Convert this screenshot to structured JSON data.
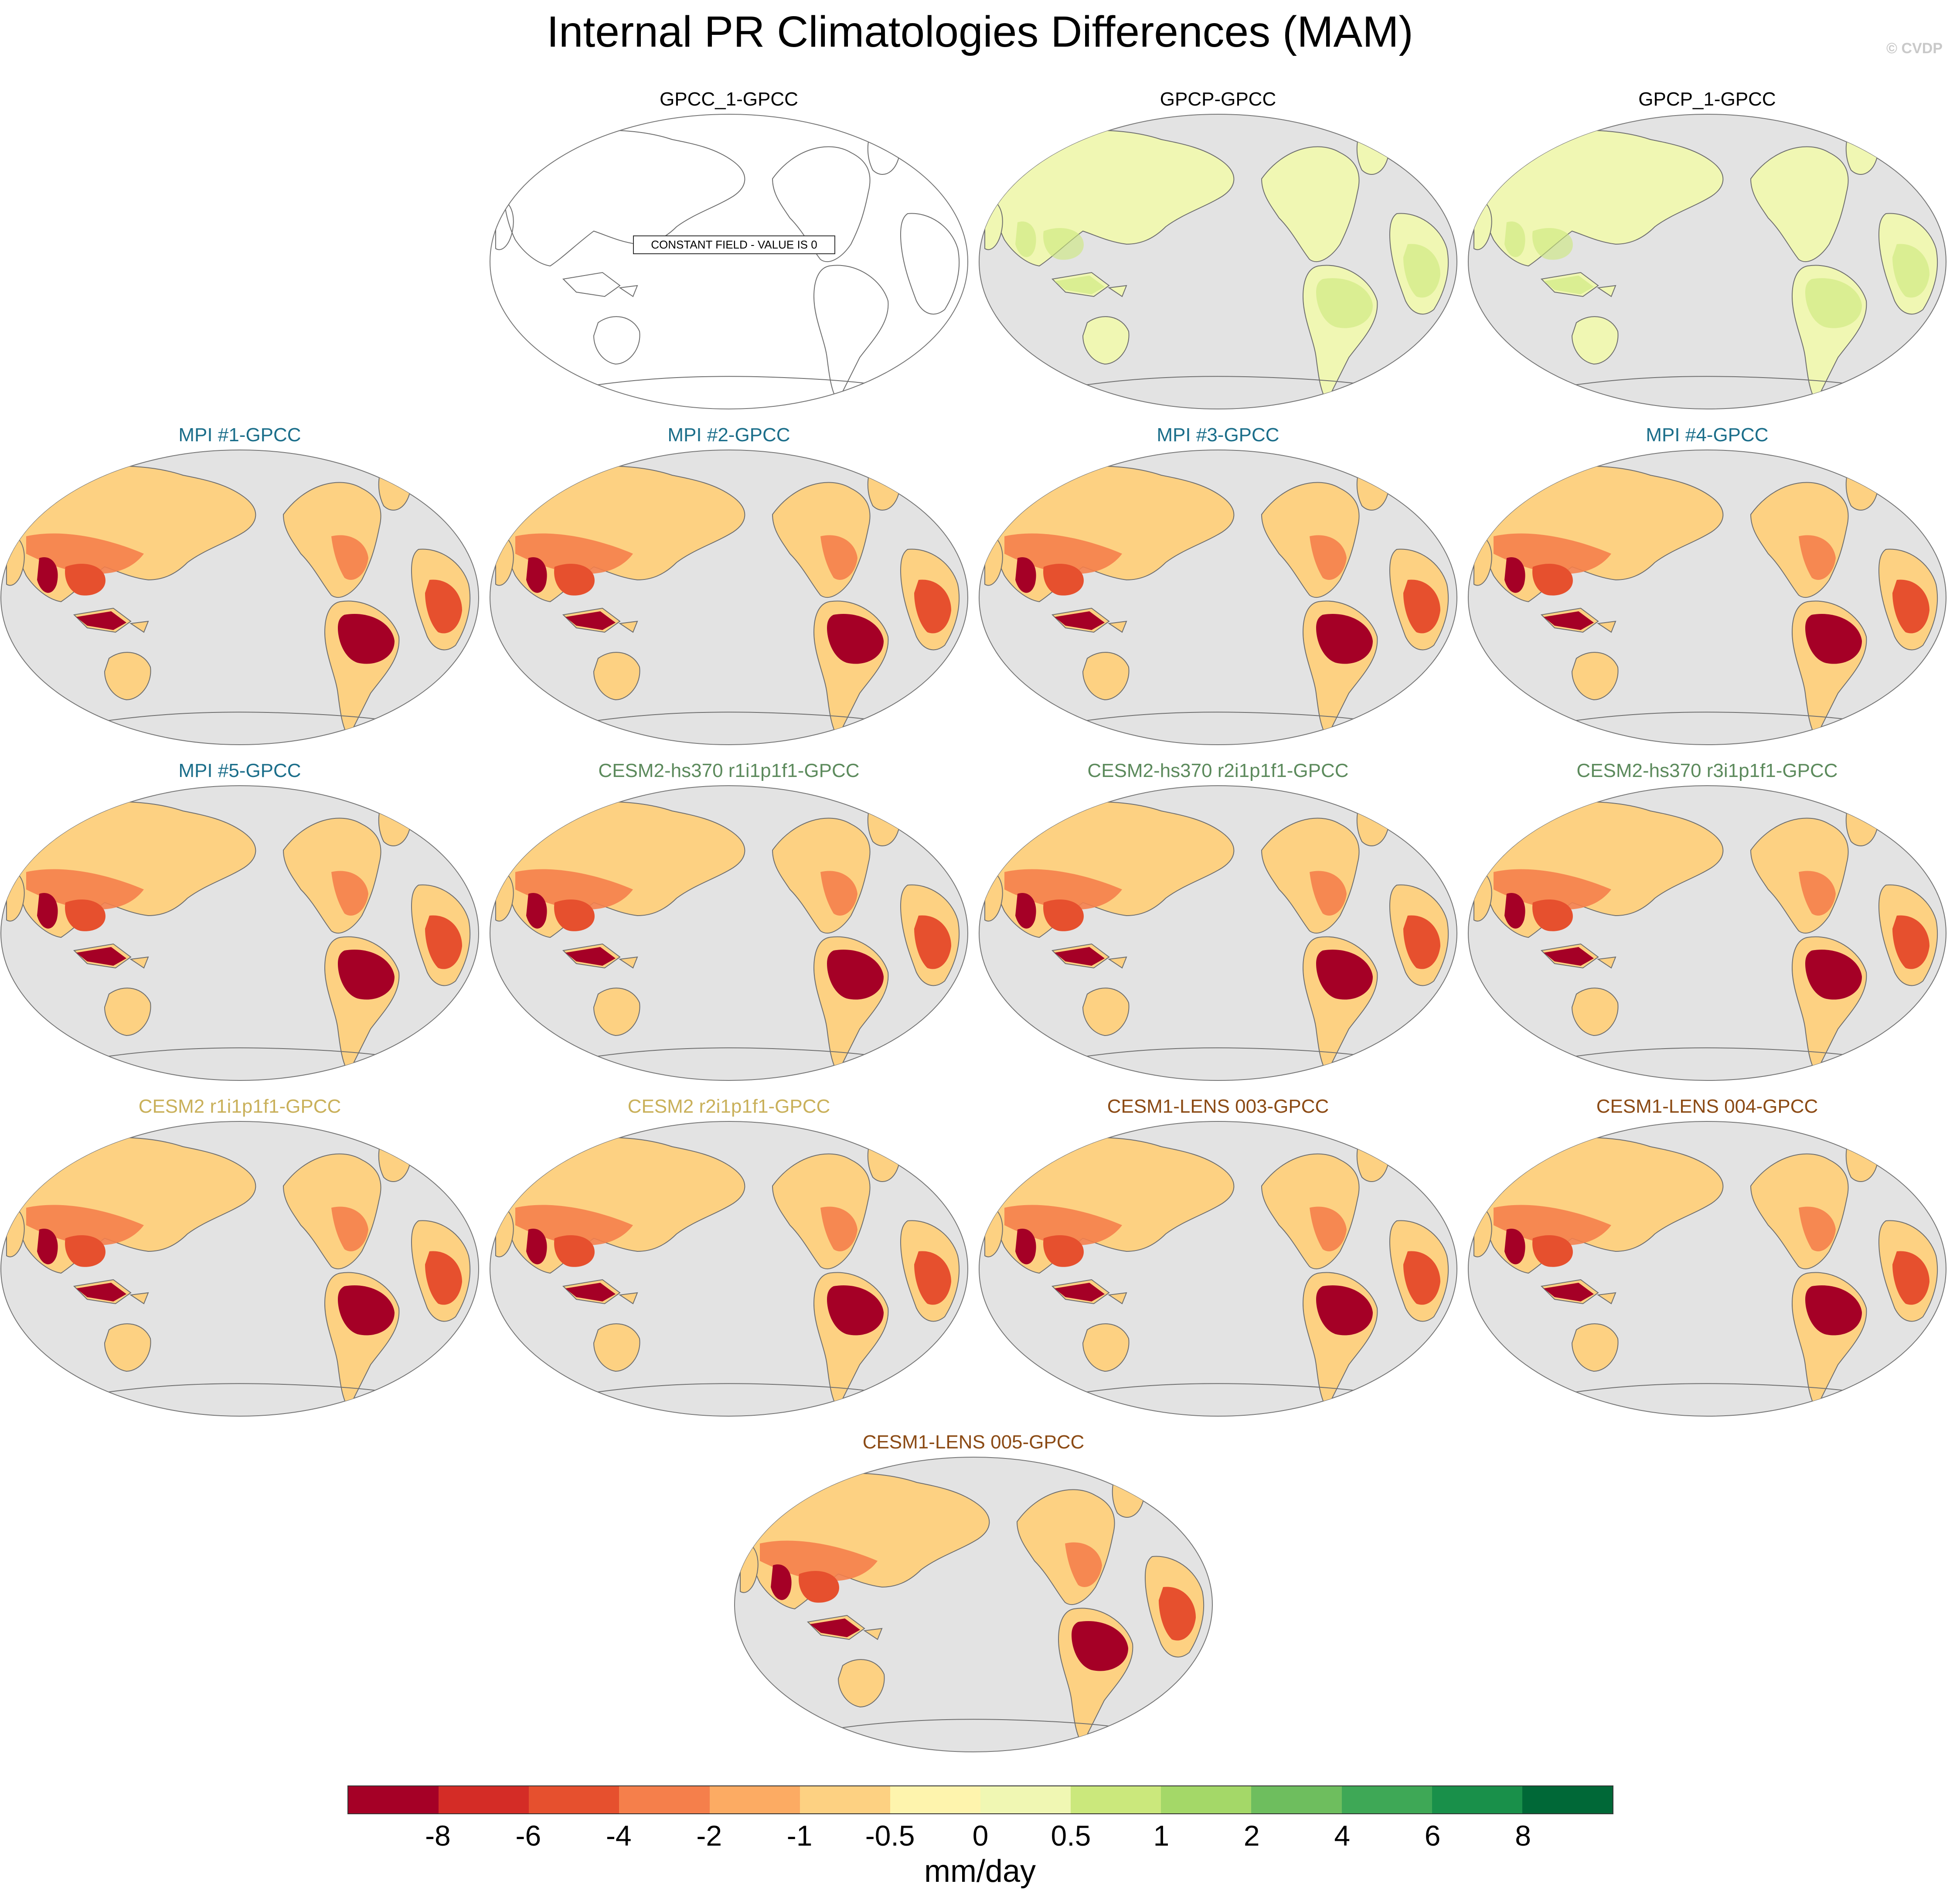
{
  "title": "Internal PR Climatologies Differences (MAM)",
  "credit": "© CVDP",
  "constant_field_label": "CONSTANT FIELD - VALUE IS 0",
  "colors": {
    "ocean": "#e3e3e3",
    "coast": "#6f6f6f",
    "blue_title": "#1b6e8a",
    "green_title": "#5c8a5c",
    "gold_title": "#c9b05a",
    "brown_title": "#8b4a14"
  },
  "panels": [
    {
      "title": "GPCC_1-GPCC",
      "title_color": "#000000",
      "pattern": "zero"
    },
    {
      "title": "GPCP-GPCC",
      "title_color": "#000000",
      "pattern": "light"
    },
    {
      "title": "GPCP_1-GPCC",
      "title_color": "#000000",
      "pattern": "light"
    },
    {
      "title": "MPI #1-GPCC",
      "title_color": "#1b6e8a",
      "pattern": "dry"
    },
    {
      "title": "MPI #2-GPCC",
      "title_color": "#1b6e8a",
      "pattern": "dry"
    },
    {
      "title": "MPI #3-GPCC",
      "title_color": "#1b6e8a",
      "pattern": "dry"
    },
    {
      "title": "MPI #4-GPCC",
      "title_color": "#1b6e8a",
      "pattern": "dry"
    },
    {
      "title": "MPI #5-GPCC",
      "title_color": "#1b6e8a",
      "pattern": "dry"
    },
    {
      "title": "CESM2-hs370 r1i1p1f1-GPCC",
      "title_color": "#5c8a5c",
      "pattern": "dry"
    },
    {
      "title": "CESM2-hs370 r2i1p1f1-GPCC",
      "title_color": "#5c8a5c",
      "pattern": "dry"
    },
    {
      "title": "CESM2-hs370 r3i1p1f1-GPCC",
      "title_color": "#5c8a5c",
      "pattern": "dry"
    },
    {
      "title": "CESM2 r1i1p1f1-GPCC",
      "title_color": "#c9b05a",
      "pattern": "dry"
    },
    {
      "title": "CESM2 r2i1p1f1-GPCC",
      "title_color": "#c9b05a",
      "pattern": "dry"
    },
    {
      "title": "CESM1-LENS 003-GPCC",
      "title_color": "#8b4a14",
      "pattern": "dry"
    },
    {
      "title": "CESM1-LENS 004-GPCC",
      "title_color": "#8b4a14",
      "pattern": "dry"
    },
    {
      "title": "CESM1-LENS 005-GPCC",
      "title_color": "#8b4a14",
      "pattern": "dry"
    }
  ],
  "colorbar": {
    "colors": [
      "#a50026",
      "#d42c26",
      "#e6502e",
      "#f57f4b",
      "#fcab63",
      "#fdd182",
      "#fef4ad",
      "#f0f7b3",
      "#cbe87c",
      "#a4d868",
      "#6ebe5e",
      "#3ea856",
      "#19904a",
      "#006837"
    ],
    "ticks": [
      "-8",
      "-6",
      "-4",
      "-2",
      "-1",
      "-0.5",
      "0",
      "0.5",
      "1",
      "2",
      "4",
      "6",
      "8"
    ],
    "units": "mm/day"
  }
}
